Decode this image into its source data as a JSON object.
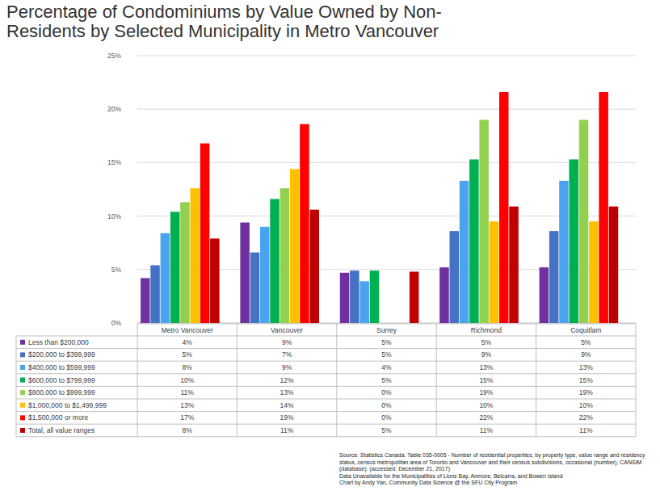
{
  "chart_data": {
    "type": "bar",
    "title": "Percentage of Condominiums by Value Owned by Non-Residents by Selected Municipality in Metro Vancouver",
    "categories": [
      "Metro Vancouver",
      "Vancouver",
      "Surrey",
      "Richmond",
      "Coquitlam"
    ],
    "series": [
      {
        "name": "Less than $200,000",
        "color": "#7030a0",
        "values": [
          4.2,
          9.4,
          4.7,
          5.2,
          5.2
        ],
        "value_labels": [
          "4%",
          "9%",
          "5%",
          "5%",
          "5%"
        ]
      },
      {
        "name": "$200,000 to $399,999",
        "color": "#4472c4",
        "values": [
          5.4,
          6.6,
          4.9,
          8.6,
          8.6
        ],
        "value_labels": [
          "5%",
          "7%",
          "5%",
          "9%",
          "9%"
        ]
      },
      {
        "name": "$400,000 to $599,999",
        "color": "#4aa3ef",
        "values": [
          8.4,
          9.0,
          3.9,
          13.3,
          13.3
        ],
        "value_labels": [
          "8%",
          "9%",
          "4%",
          "13%",
          "13%"
        ]
      },
      {
        "name": "$600,000 to $799,999",
        "color": "#00b050",
        "values": [
          10.4,
          11.6,
          4.9,
          15.3,
          15.3
        ],
        "value_labels": [
          "10%",
          "12%",
          "5%",
          "15%",
          "15%"
        ]
      },
      {
        "name": "$800,000 to $999,999",
        "color": "#92d050",
        "values": [
          11.3,
          12.6,
          0,
          19.0,
          19.0
        ],
        "value_labels": [
          "11%",
          "13%",
          "0%",
          "19%",
          "19%"
        ]
      },
      {
        "name": "$1,000,000 to $1,499,999",
        "color": "#ffc000",
        "values": [
          12.6,
          14.4,
          0,
          9.5,
          9.5
        ],
        "value_labels": [
          "13%",
          "14%",
          "0%",
          "10%",
          "10%"
        ]
      },
      {
        "name": "$1,500,000 or more",
        "color": "#ff0000",
        "values": [
          16.8,
          18.6,
          0,
          21.6,
          21.6
        ],
        "value_labels": [
          "17%",
          "19%",
          "0%",
          "22%",
          "22%"
        ]
      },
      {
        "name": "Total, all value ranges",
        "color": "#c00000",
        "values": [
          7.9,
          10.6,
          4.8,
          10.9,
          10.9
        ],
        "value_labels": [
          "8%",
          "11%",
          "5%",
          "11%",
          "11%"
        ]
      }
    ],
    "ylim": [
      0,
      25
    ],
    "yticks": [
      {
        "value": 0,
        "label": "0%"
      },
      {
        "value": 5,
        "label": "5%"
      },
      {
        "value": 10,
        "label": "10%"
      },
      {
        "value": 15,
        "label": "15%"
      },
      {
        "value": 20,
        "label": "20%"
      },
      {
        "value": 25,
        "label": "25%"
      }
    ],
    "grid": true,
    "annotations": [
      "Source:  Statistics Canada. Table 035-0005 - Number of residential properties, by property type, value range and residency status, census metropolitan area of Toronto and Vancouver and their census subdivisions, occasional (number),  CANSIM (database). (accessed: December 21, 2017)",
      "Data Unavailable for the Municipalities of Lions Bay, Anmore, Belcarra, and Bowen Island",
      "Chart by Andy Yan, Community Data Science @ the SFU City Program"
    ]
  }
}
